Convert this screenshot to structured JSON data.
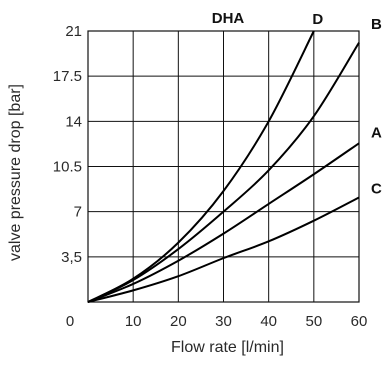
{
  "chart_data": {
    "type": "line",
    "title": "DHA",
    "xlabel": "Flow rate [l/min]",
    "ylabel": "valve pressure drop [bar]",
    "xlim": [
      0,
      60
    ],
    "ylim": [
      0,
      21
    ],
    "x_ticks": [
      "0",
      "10",
      "20",
      "30",
      "40",
      "50",
      "60"
    ],
    "y_ticks": [
      "3,5",
      "7",
      "10.5",
      "14",
      "17.5",
      "21"
    ],
    "y_tick_values": [
      3.5,
      7,
      10.5,
      14,
      17.5,
      21
    ],
    "x_tick_values": [
      0,
      10,
      20,
      30,
      40,
      50,
      60
    ],
    "grid": true,
    "series": [
      {
        "name": "D",
        "x": [
          0,
          10,
          20,
          30,
          40,
          50
        ],
        "y": [
          0,
          1.8,
          4.6,
          8.6,
          14.0,
          21.0
        ]
      },
      {
        "name": "B",
        "x": [
          0,
          10,
          20,
          30,
          40,
          50,
          60
        ],
        "y": [
          0,
          1.7,
          4.1,
          7.0,
          10.2,
          14.4,
          20.1
        ]
      },
      {
        "name": "A",
        "x": [
          0,
          10,
          20,
          30,
          40,
          50,
          60
        ],
        "y": [
          0,
          1.4,
          3.2,
          5.3,
          7.6,
          9.9,
          12.3
        ]
      },
      {
        "name": "C",
        "x": [
          0,
          10,
          20,
          30,
          40,
          50,
          60
        ],
        "y": [
          0,
          0.9,
          2.0,
          3.4,
          4.7,
          6.3,
          8.1
        ]
      }
    ]
  }
}
